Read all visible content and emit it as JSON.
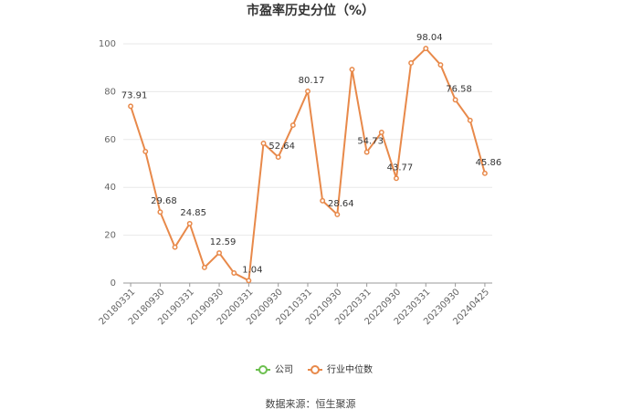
{
  "chart_data": {
    "type": "line",
    "title": "市盈率历史分位（%）",
    "source": "数据来源：恒生聚源",
    "categories": [
      "20180331",
      null,
      "20180930",
      null,
      "20190331",
      null,
      "20190930",
      null,
      "20200331",
      null,
      "20200930",
      null,
      "20210331",
      null,
      "20210930",
      null,
      "20220331",
      null,
      "20220930",
      null,
      "20230331",
      null,
      "20230930",
      null,
      "20240425"
    ],
    "series": [
      {
        "name": "公司",
        "color": "#6cbf4f",
        "values": [
          null,
          null,
          null,
          null,
          null,
          null,
          null,
          null,
          null,
          null,
          null,
          null,
          null,
          null,
          null,
          null,
          null,
          null,
          null,
          null,
          null,
          null,
          null,
          null,
          null
        ]
      },
      {
        "name": "行业中位数",
        "color": "#e8894a",
        "values": [
          73.91,
          55,
          29.68,
          15,
          24.85,
          6.5,
          12.59,
          4.2,
          1.04,
          58.4,
          52.64,
          66,
          80.17,
          34.4,
          28.64,
          89.3,
          54.73,
          63,
          43.77,
          92,
          98.04,
          91.2,
          76.58,
          68,
          45.86
        ],
        "value_labels": [
          "73.91",
          null,
          "29.68",
          null,
          "24.85",
          null,
          "12.59",
          null,
          "1.04",
          null,
          "52.64",
          null,
          "80.17",
          null,
          "28.64",
          null,
          "54.73",
          null,
          "43.77",
          null,
          "98.04",
          null,
          "76.58",
          null,
          "45.86"
        ]
      }
    ],
    "ylim": [
      0,
      100
    ],
    "yticks": [
      0,
      20,
      40,
      60,
      80,
      100
    ],
    "grid": true,
    "legend": "bottom"
  }
}
